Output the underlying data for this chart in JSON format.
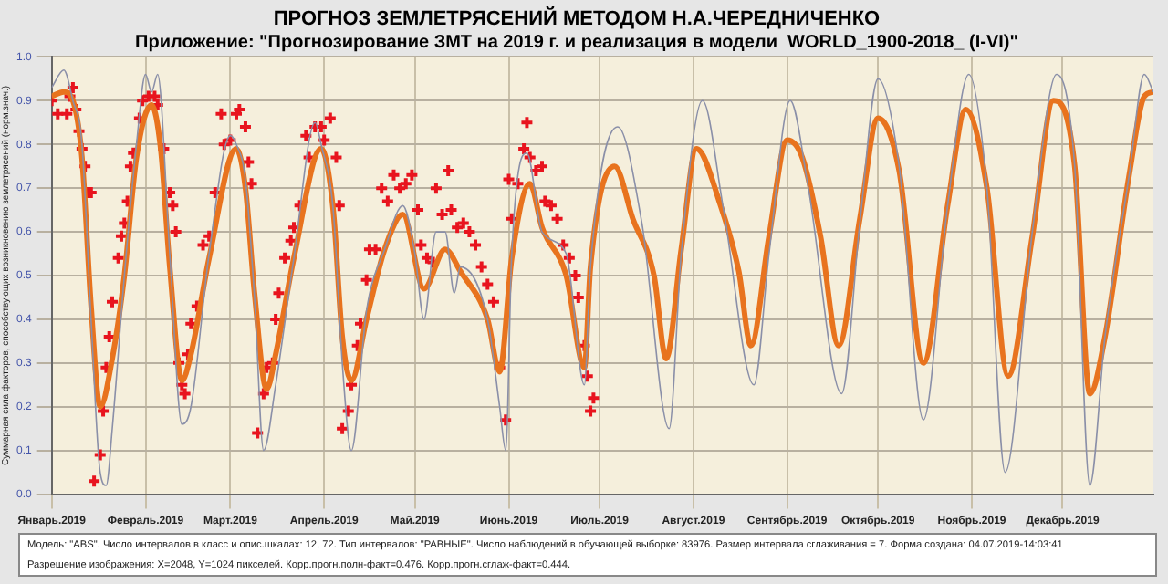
{
  "chart_data": {
    "type": "line",
    "title": "ПРОГНОЗ ЗЕМЛЕТРЯСЕНИЙ МЕТОДОМ Н.А.ЧЕРЕДНИЧЕНКО",
    "subtitle": "Приложение: \"Прогнозирование ЗМТ на 2019 г. и реализация в модели  WORLD_1900-2018_ (I-VI)\"",
    "ylabel": "Суммарная сила факторов, способствующих возникновению землетрясений (норм.знач.)",
    "xlim": [
      "2019-01-01",
      "2019-12-31"
    ],
    "ylim": [
      0,
      1
    ],
    "xticks": [
      {
        "value": "2019-01-01",
        "label": "Январь.2019"
      },
      {
        "value": "2019-02-01",
        "label": "Февраль.2019"
      },
      {
        "value": "2019-03-01",
        "label": "Март.2019"
      },
      {
        "value": "2019-04-01",
        "label": "Апрель.2019"
      },
      {
        "value": "2019-05-01",
        "label": "Май.2019"
      },
      {
        "value": "2019-06-01",
        "label": "Июнь.2019"
      },
      {
        "value": "2019-07-01",
        "label": "Июль.2019"
      },
      {
        "value": "2019-08-01",
        "label": "Август.2019"
      },
      {
        "value": "2019-09-01",
        "label": "Сентябрь.2019"
      },
      {
        "value": "2019-10-01",
        "label": "Октябрь.2019"
      },
      {
        "value": "2019-11-01",
        "label": "Ноябрь.2019"
      },
      {
        "value": "2019-12-01",
        "label": "Декабрь.2019"
      }
    ],
    "yticks": [
      {
        "value": 0,
        "label": "0.0"
      },
      {
        "value": 0.1,
        "label": "0.1"
      },
      {
        "value": 0.2,
        "label": "0.2"
      },
      {
        "value": 0.3,
        "label": "0.3"
      },
      {
        "value": 0.4,
        "label": "0.4"
      },
      {
        "value": 0.5,
        "label": "0.5"
      },
      {
        "value": 0.6,
        "label": "0.6"
      },
      {
        "value": 0.7,
        "label": "0.7"
      },
      {
        "value": 0.8,
        "label": "0.8"
      },
      {
        "value": 0.9,
        "label": "0.9"
      },
      {
        "value": 1,
        "label": "1.0"
      }
    ],
    "grid": true,
    "legend": false,
    "series": [
      {
        "color": "#8a8fa8",
        "x": [
          "2019-01-01",
          "2019-01-05",
          "2019-01-08",
          "2019-01-11",
          "2019-01-14",
          "2019-01-17",
          "2019-01-19",
          "2019-01-21",
          "2019-01-25",
          "2019-01-29",
          "2019-02-01",
          "2019-02-03",
          "2019-02-05",
          "2019-02-09",
          "2019-02-13",
          "2019-02-16",
          "2019-02-22",
          "2019-03-01",
          "2019-03-03",
          "2019-03-06",
          "2019-03-09",
          "2019-03-12",
          "2019-03-16",
          "2019-03-22",
          "2019-03-29",
          "2019-03-31",
          "2019-04-04",
          "2019-04-07",
          "2019-04-10",
          "2019-04-15",
          "2019-04-21",
          "2019-04-27",
          "2019-05-01",
          "2019-05-04",
          "2019-05-08",
          "2019-05-11",
          "2019-05-14",
          "2019-05-16",
          "2019-05-25",
          "2019-05-29",
          "2019-05-31",
          "2019-06-02",
          "2019-06-07",
          "2019-06-12",
          "2019-06-20",
          "2019-06-26",
          "2019-06-28",
          "2019-07-07",
          "2019-07-15",
          "2019-07-24",
          "2019-07-28",
          "2019-08-04",
          "2019-08-11",
          "2019-08-21",
          "2019-08-26",
          "2019-09-02",
          "2019-09-08",
          "2019-09-19",
          "2019-09-25",
          "2019-10-01",
          "2019-10-08",
          "2019-10-16",
          "2019-10-24",
          "2019-10-31",
          "2019-11-06",
          "2019-11-12",
          "2019-11-21",
          "2019-11-29",
          "2019-12-05",
          "2019-12-10",
          "2019-12-15",
          "2019-12-23",
          "2019-12-28",
          "2019-12-31"
        ],
        "values": [
          0.93,
          0.97,
          0.9,
          0.8,
          0.4,
          0.05,
          0.02,
          0.15,
          0.5,
          0.8,
          0.96,
          0.92,
          0.96,
          0.55,
          0.16,
          0.2,
          0.55,
          0.82,
          0.8,
          0.72,
          0.45,
          0.1,
          0.25,
          0.54,
          0.85,
          0.8,
          0.65,
          0.3,
          0.1,
          0.42,
          0.56,
          0.66,
          0.55,
          0.4,
          0.6,
          0.6,
          0.46,
          0.52,
          0.4,
          0.2,
          0.1,
          0.55,
          0.78,
          0.6,
          0.55,
          0.25,
          0.52,
          0.84,
          0.62,
          0.15,
          0.55,
          0.9,
          0.65,
          0.25,
          0.55,
          0.9,
          0.7,
          0.23,
          0.62,
          0.95,
          0.75,
          0.17,
          0.66,
          0.96,
          0.7,
          0.05,
          0.6,
          0.96,
          0.75,
          0.02,
          0.36,
          0.73,
          0.96,
          0.92
        ]
      },
      {
        "color": "#e8731e",
        "x": [
          "2019-01-01",
          "2019-01-05",
          "2019-01-08",
          "2019-01-11",
          "2019-01-14",
          "2019-01-17",
          "2019-01-21",
          "2019-01-25",
          "2019-01-29",
          "2019-02-03",
          "2019-02-06",
          "2019-02-09",
          "2019-02-13",
          "2019-02-16",
          "2019-02-22",
          "2019-03-03",
          "2019-03-06",
          "2019-03-09",
          "2019-03-13",
          "2019-03-16",
          "2019-03-22",
          "2019-03-31",
          "2019-04-04",
          "2019-04-07",
          "2019-04-10",
          "2019-04-15",
          "2019-04-21",
          "2019-04-27",
          "2019-05-04",
          "2019-05-11",
          "2019-05-16",
          "2019-05-25",
          "2019-05-29",
          "2019-06-02",
          "2019-06-08",
          "2019-06-12",
          "2019-06-20",
          "2019-06-26",
          "2019-06-28",
          "2019-07-06",
          "2019-07-12",
          "2019-07-19",
          "2019-07-23",
          "2019-07-28",
          "2019-08-02",
          "2019-08-10",
          "2019-08-16",
          "2019-08-20",
          "2019-08-26",
          "2019-09-01",
          "2019-09-06",
          "2019-09-12",
          "2019-09-18",
          "2019-09-25",
          "2019-10-01",
          "2019-10-08",
          "2019-10-16",
          "2019-10-24",
          "2019-10-30",
          "2019-11-06",
          "2019-11-13",
          "2019-11-21",
          "2019-11-28",
          "2019-12-05",
          "2019-12-10",
          "2019-12-15",
          "2019-12-23",
          "2019-12-28",
          "2019-12-31"
        ],
        "values": [
          0.91,
          0.92,
          0.9,
          0.77,
          0.43,
          0.2,
          0.31,
          0.5,
          0.77,
          0.89,
          0.79,
          0.52,
          0.26,
          0.32,
          0.54,
          0.79,
          0.7,
          0.46,
          0.24,
          0.32,
          0.54,
          0.79,
          0.65,
          0.36,
          0.26,
          0.4,
          0.56,
          0.64,
          0.47,
          0.56,
          0.51,
          0.4,
          0.28,
          0.54,
          0.71,
          0.61,
          0.5,
          0.29,
          0.52,
          0.75,
          0.63,
          0.5,
          0.31,
          0.56,
          0.79,
          0.66,
          0.51,
          0.34,
          0.59,
          0.81,
          0.77,
          0.59,
          0.34,
          0.63,
          0.86,
          0.74,
          0.3,
          0.66,
          0.88,
          0.7,
          0.27,
          0.59,
          0.9,
          0.75,
          0.23,
          0.36,
          0.73,
          0.91,
          0.92
        ]
      },
      {
        "type": "scatter",
        "color": "#e8141e",
        "marker": "cross",
        "x": [
          "2019-01-01",
          "2019-01-03",
          "2019-01-06",
          "2019-01-07",
          "2019-01-08",
          "2019-01-09",
          "2019-01-10",
          "2019-01-11",
          "2019-01-12",
          "2019-01-13",
          "2019-01-14",
          "2019-01-15",
          "2019-01-17",
          "2019-01-18",
          "2019-01-19",
          "2019-01-20",
          "2019-01-21",
          "2019-01-23",
          "2019-01-24",
          "2019-01-25",
          "2019-01-26",
          "2019-01-27",
          "2019-01-28",
          "2019-01-30",
          "2019-01-31",
          "2019-02-02",
          "2019-02-04",
          "2019-02-05",
          "2019-02-07",
          "2019-02-09",
          "2019-02-10",
          "2019-02-11",
          "2019-02-12",
          "2019-02-13",
          "2019-02-14",
          "2019-02-15",
          "2019-02-16",
          "2019-02-18",
          "2019-02-20",
          "2019-02-22",
          "2019-02-24",
          "2019-02-26",
          "2019-02-27",
          "2019-03-01",
          "2019-03-03",
          "2019-03-04",
          "2019-03-06",
          "2019-03-07",
          "2019-03-08",
          "2019-03-10",
          "2019-03-12",
          "2019-03-13",
          "2019-03-15",
          "2019-03-16",
          "2019-03-17",
          "2019-03-19",
          "2019-03-21",
          "2019-03-22",
          "2019-03-24",
          "2019-03-26",
          "2019-03-27",
          "2019-03-29",
          "2019-03-31",
          "2019-04-01",
          "2019-04-03",
          "2019-04-05",
          "2019-04-06",
          "2019-04-07",
          "2019-04-09",
          "2019-04-10",
          "2019-04-12",
          "2019-04-13",
          "2019-04-15",
          "2019-04-16",
          "2019-04-18",
          "2019-04-20",
          "2019-04-22",
          "2019-04-24",
          "2019-04-26",
          "2019-04-28",
          "2019-04-30",
          "2019-05-02",
          "2019-05-03",
          "2019-05-05",
          "2019-05-07",
          "2019-05-08",
          "2019-05-10",
          "2019-05-12",
          "2019-05-13",
          "2019-05-15",
          "2019-05-17",
          "2019-05-19",
          "2019-05-21",
          "2019-05-23",
          "2019-05-25",
          "2019-05-27",
          "2019-05-29",
          "2019-05-31",
          "2019-06-01",
          "2019-06-02",
          "2019-06-04",
          "2019-06-06",
          "2019-06-07",
          "2019-06-08",
          "2019-06-10",
          "2019-06-12",
          "2019-06-13",
          "2019-06-15",
          "2019-06-17",
          "2019-06-19",
          "2019-06-21",
          "2019-06-23",
          "2019-06-24",
          "2019-06-26",
          "2019-06-27",
          "2019-06-28",
          "2019-06-29"
        ],
        "values": [
          0.9,
          0.87,
          0.87,
          0.91,
          0.93,
          0.88,
          0.83,
          0.79,
          0.75,
          0.69,
          0.69,
          0.03,
          0.09,
          0.19,
          0.29,
          0.36,
          0.44,
          0.54,
          0.59,
          0.62,
          0.67,
          0.75,
          0.78,
          0.86,
          0.9,
          0.91,
          0.91,
          0.89,
          0.79,
          0.69,
          0.66,
          0.6,
          0.3,
          0.25,
          0.23,
          0.32,
          0.39,
          0.43,
          0.57,
          0.59,
          0.69,
          0.87,
          0.8,
          0.81,
          0.87,
          0.88,
          0.84,
          0.76,
          0.71,
          0.14,
          0.23,
          0.29,
          0.3,
          0.4,
          0.46,
          0.54,
          0.58,
          0.61,
          0.66,
          0.82,
          0.77,
          0.84,
          0.84,
          0.81,
          0.86,
          0.77,
          0.66,
          0.15,
          0.19,
          0.25,
          0.34,
          0.39,
          0.49,
          0.56,
          0.56,
          0.7,
          0.67,
          0.73,
          0.7,
          0.71,
          0.73,
          0.65,
          0.57,
          0.54,
          0.53,
          0.7,
          0.64,
          0.74,
          0.65,
          0.61,
          0.62,
          0.6,
          0.57,
          0.52,
          0.48,
          0.44,
          0.29,
          0.17,
          0.72,
          0.63,
          0.71,
          0.79,
          0.85,
          0.77,
          0.74,
          0.75,
          0.67,
          0.66,
          0.63,
          0.57,
          0.54,
          0.5,
          0.45,
          0.34,
          0.27,
          0.19,
          0.22
        ]
      }
    ],
    "annotations": [
      "Модель: \"ABS\". Число интервалов в класс и опис.шкалах: 12, 72. Тип интервалов: \"РАВНЫЕ\". Число наблюдений в обучающей выборке: 83976. Размер интервала сглаживания = 7. Форма создана: 04.07.2019-14:03:41",
      "Разрешение изображения: X=2048, Y=1024 пикселей. Корр.прогн.полн-факт=0.476. Корр.прогн.сглаж-факт=0.444."
    ]
  }
}
